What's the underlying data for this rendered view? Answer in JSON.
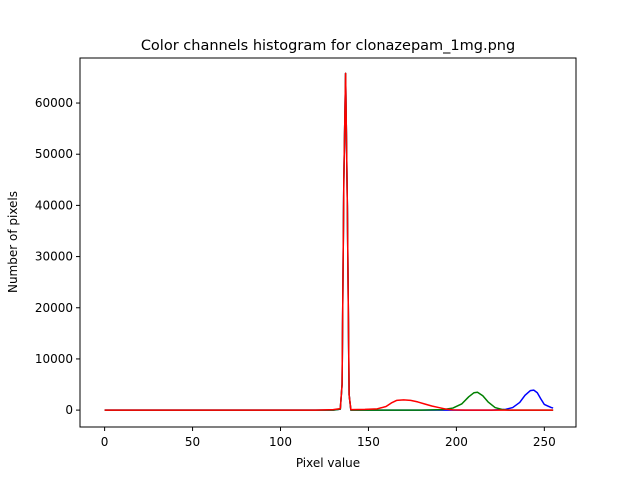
{
  "chart_data": {
    "type": "line",
    "title": "Color channels histogram for clonazepam_1mg.png",
    "xlabel": "Pixel value",
    "ylabel": "Number of pixels",
    "xlim": [
      -14,
      268
    ],
    "ylim": [
      -3300,
      68800
    ],
    "xticks": [
      0,
      50,
      100,
      150,
      200,
      250
    ],
    "yticks": [
      0,
      10000,
      20000,
      30000,
      40000,
      50000,
      60000
    ],
    "grid": false,
    "legend": "none",
    "series": [
      {
        "color": "#0000ff",
        "points": [
          [
            0,
            0
          ],
          [
            100,
            0
          ],
          [
            130,
            0
          ],
          [
            134,
            200
          ],
          [
            135,
            5000
          ],
          [
            136,
            45000
          ],
          [
            137,
            65800
          ],
          [
            138,
            40000
          ],
          [
            139,
            3000
          ],
          [
            140,
            0
          ],
          [
            150,
            0
          ],
          [
            200,
            0
          ],
          [
            220,
            0
          ],
          [
            228,
            150
          ],
          [
            232,
            500
          ],
          [
            236,
            1500
          ],
          [
            239,
            2900
          ],
          [
            242,
            3800
          ],
          [
            244,
            3900
          ],
          [
            246,
            3400
          ],
          [
            248,
            2200
          ],
          [
            250,
            1100
          ],
          [
            252,
            800
          ],
          [
            254,
            500
          ],
          [
            255,
            400
          ]
        ]
      },
      {
        "color": "#008000",
        "points": [
          [
            0,
            0
          ],
          [
            100,
            0
          ],
          [
            130,
            0
          ],
          [
            134,
            200
          ],
          [
            135,
            5000
          ],
          [
            136,
            45000
          ],
          [
            137,
            65800
          ],
          [
            138,
            40000
          ],
          [
            139,
            3000
          ],
          [
            140,
            0
          ],
          [
            150,
            0
          ],
          [
            180,
            0
          ],
          [
            192,
            100
          ],
          [
            198,
            400
          ],
          [
            203,
            1200
          ],
          [
            207,
            2600
          ],
          [
            210,
            3400
          ],
          [
            212,
            3500
          ],
          [
            215,
            2800
          ],
          [
            218,
            1600
          ],
          [
            222,
            500
          ],
          [
            226,
            120
          ],
          [
            230,
            0
          ],
          [
            255,
            0
          ]
        ]
      },
      {
        "color": "#ff0000",
        "points": [
          [
            0,
            0
          ],
          [
            100,
            0
          ],
          [
            120,
            0
          ],
          [
            130,
            100
          ],
          [
            134,
            300
          ],
          [
            135,
            5000
          ],
          [
            136,
            45000
          ],
          [
            137,
            65800
          ],
          [
            138,
            40000
          ],
          [
            139,
            3000
          ],
          [
            140,
            100
          ],
          [
            148,
            150
          ],
          [
            155,
            250
          ],
          [
            160,
            700
          ],
          [
            163,
            1400
          ],
          [
            166,
            1900
          ],
          [
            170,
            2000
          ],
          [
            174,
            1900
          ],
          [
            178,
            1600
          ],
          [
            182,
            1200
          ],
          [
            186,
            800
          ],
          [
            190,
            500
          ],
          [
            194,
            200
          ],
          [
            198,
            50
          ],
          [
            205,
            0
          ],
          [
            255,
            0
          ]
        ]
      }
    ]
  }
}
